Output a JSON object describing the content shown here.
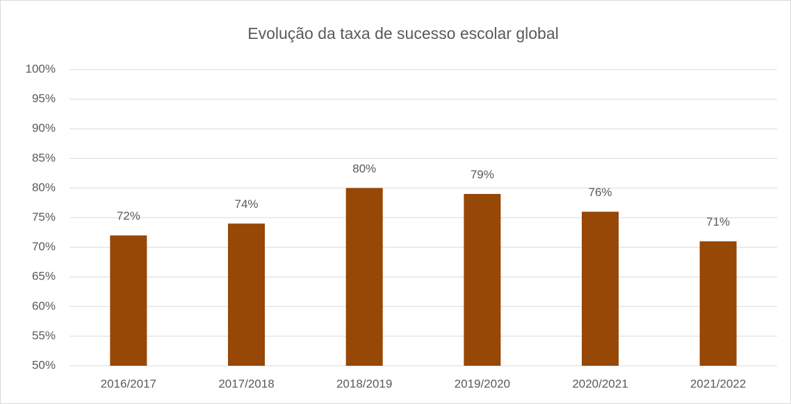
{
  "chart_data": {
    "type": "bar",
    "title": "Evolução da taxa de sucesso escolar global",
    "categories": [
      "2016/2017",
      "2017/2018",
      "2018/2019",
      "2019/2020",
      "2020/2021",
      "2021/2022"
    ],
    "values": [
      72,
      74,
      80,
      79,
      76,
      71
    ],
    "value_labels": [
      "72%",
      "74%",
      "80%",
      "79%",
      "76%",
      "71%"
    ],
    "color": "#974706",
    "ylim": [
      50,
      100
    ],
    "yticks": [
      {
        "value": 50,
        "label": "50%"
      },
      {
        "value": 55,
        "label": "55%"
      },
      {
        "value": 60,
        "label": "60%"
      },
      {
        "value": 65,
        "label": "65%"
      },
      {
        "value": 70,
        "label": "70%"
      },
      {
        "value": 75,
        "label": "75%"
      },
      {
        "value": 80,
        "label": "80%"
      },
      {
        "value": 85,
        "label": "85%"
      },
      {
        "value": 90,
        "label": "90%"
      },
      {
        "value": 95,
        "label": "95%"
      },
      {
        "value": 100,
        "label": "100%"
      }
    ],
    "grid": true
  }
}
